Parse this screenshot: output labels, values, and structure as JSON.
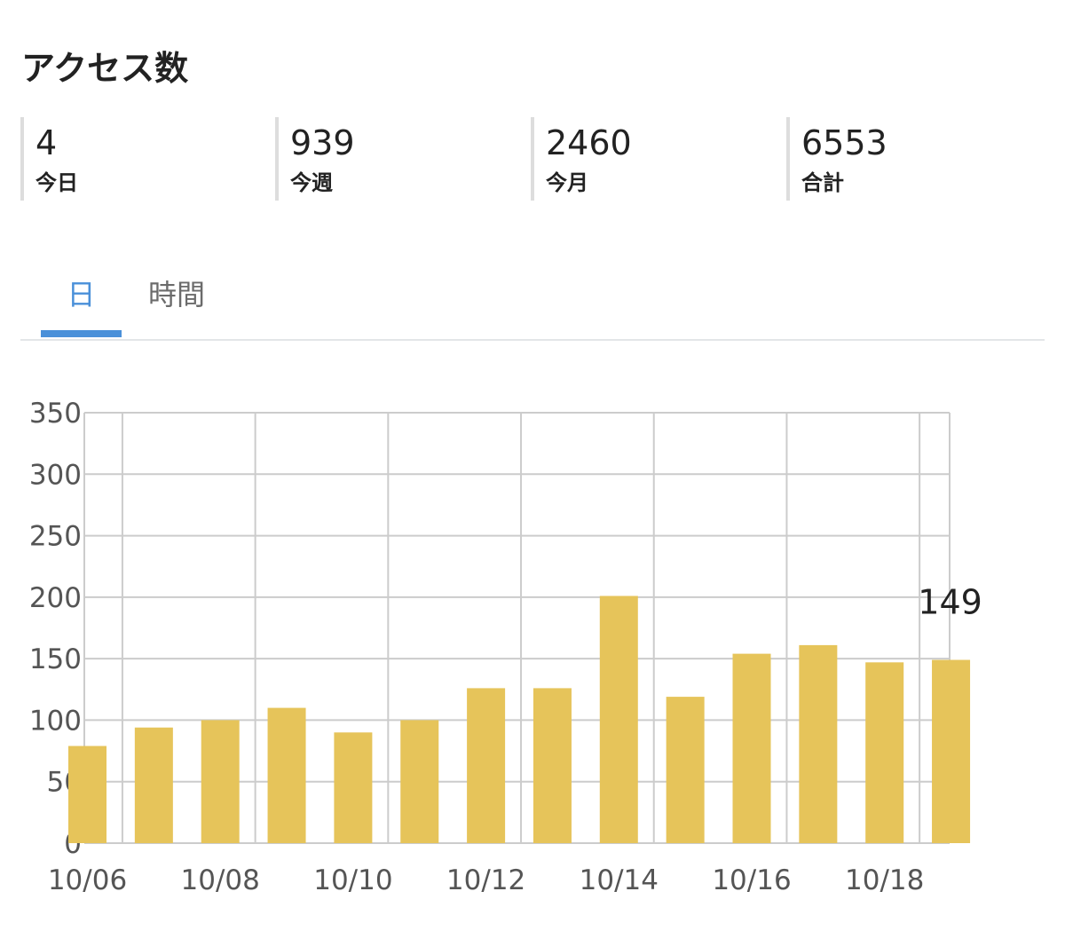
{
  "header": {
    "title": "アクセス数"
  },
  "stats": [
    {
      "value": "4",
      "label": "今日"
    },
    {
      "value": "939",
      "label": "今週"
    },
    {
      "value": "2460",
      "label": "今月"
    },
    {
      "value": "6553",
      "label": "合計"
    }
  ],
  "tabs": [
    {
      "label": "日",
      "active": true
    },
    {
      "label": "時間",
      "active": false
    }
  ],
  "colors": {
    "bar": "#e6c45a",
    "accent": "#4a90d9",
    "grid": "#cccccc",
    "tick_text": "#555555",
    "annotation_text": "#222222"
  },
  "chart_data": {
    "type": "bar",
    "categories": [
      "10/06",
      "10/07",
      "10/08",
      "10/09",
      "10/10",
      "10/11",
      "10/12",
      "10/13",
      "10/14",
      "10/15",
      "10/16",
      "10/17",
      "10/18",
      "10/19"
    ],
    "x_tick_labels": [
      "10/06",
      "10/08",
      "10/10",
      "10/12",
      "10/14",
      "10/16",
      "10/18"
    ],
    "values": [
      79,
      94,
      100,
      110,
      90,
      100,
      126,
      126,
      201,
      119,
      154,
      161,
      147,
      149
    ],
    "ylim": [
      0,
      350
    ],
    "y_ticks": [
      0,
      50,
      100,
      150,
      200,
      250,
      300,
      350
    ],
    "grid": true,
    "annotation": {
      "category": "10/19",
      "text": "149"
    }
  }
}
